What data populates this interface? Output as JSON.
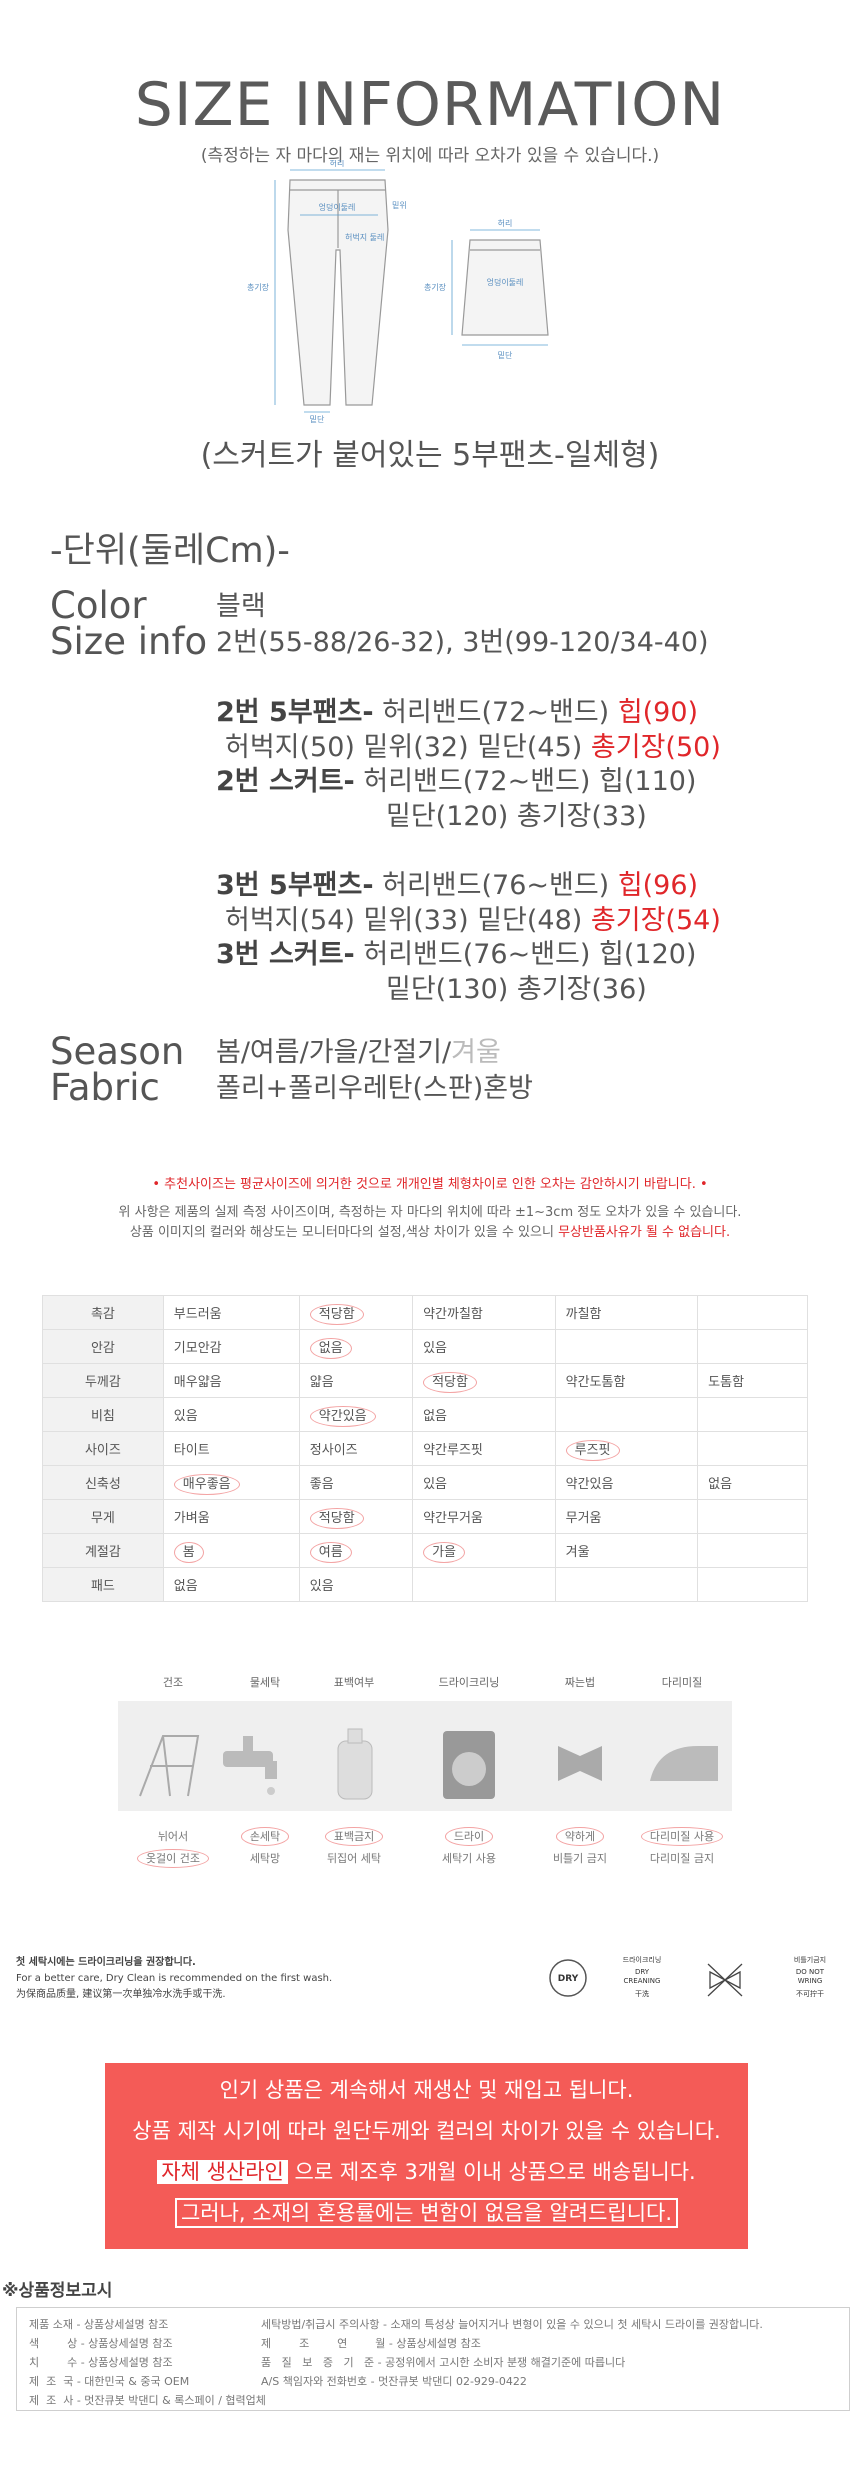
{
  "header": {
    "title": "SIZE INFORMATION",
    "subtitle": "(측정하는 자 마다의  재는 위치에 따라 오차가 있을 수 있습니다.)"
  },
  "diagram": {
    "pants_labels": [
      "허리",
      "엉덩이둘레",
      "밑위",
      "허벅지 둘레",
      "총기장",
      "밑단"
    ],
    "skirt_labels": [
      "허리",
      "엉덩이둘레",
      "총기장",
      "밑단"
    ]
  },
  "product_type": "(스커트가  붙어있는 5부팬츠-일체형)",
  "unit": "-단위(둘레Cm)-",
  "specs": {
    "color_label": "Color",
    "color": "블랙",
    "size_label": "Size info",
    "size": "2번(55-88/26-32), 3번(99-120/34-40)",
    "season_label": "Season",
    "season": "봄/여름/가을/간절기/",
    "season_off": "겨울",
    "fabric_label": "Fabric",
    "fabric": "폴리+폴리우레탄(스판)혼방"
  },
  "sizes": [
    {
      "pants_title": "2번 5부팬츠-",
      "pants_1": " 허리밴드(72~밴드) ",
      "pants_hip": "힙(90)",
      "pants_2": "허벅지(50) 밑위(32) 밑단(45) ",
      "pants_length": "총기장(50)",
      "skirt_title": "2번 스커트-",
      "skirt_1": " 허리밴드(72~밴드) 힙(110)",
      "skirt_2": "밑단(120) 총기장(33)"
    },
    {
      "pants_title": "3번 5부팬츠-",
      "pants_1": " 허리밴드(76~밴드) ",
      "pants_hip": "힙(96)",
      "pants_2": "허벅지(54) 밑위(33) 밑단(48) ",
      "pants_length": "총기장(54)",
      "skirt_title": "3번 스커트-",
      "skirt_1": " 허리밴드(76~밴드) 힙(120)",
      "skirt_2": "밑단(130) 총기장(36)"
    }
  ],
  "notice": {
    "recommend": "• 추천사이즈는 평균사이즈에 의거한 것으로 개개인별 체형차이로 인한 오차는 감안하시기 바랍니다. •",
    "measure": "위 사항은 제품의 실제 측정 사이즈이며, 측정하는 자 마다의 위치에 따라 ±1~3cm 정도 오차가 있을 수 있습니다.",
    "color": "상품 이미지의 컬러와 해상도는 모니터마다의 설정,색상 차이가 있을 수 있으니 ",
    "color_warn": "무상반품사유가 될 수 없습니다."
  },
  "fabric_table": {
    "rows": [
      {
        "label": "촉감",
        "options": [
          "부드러움",
          "적당함",
          "약간까칠함",
          "까칠함"
        ],
        "selected": [
          1
        ]
      },
      {
        "label": "안감",
        "options": [
          "기모안감",
          "없음",
          "있음"
        ],
        "selected": [
          1
        ]
      },
      {
        "label": "두께감",
        "options": [
          "매우얇음",
          "얇음",
          "적당함",
          "약간도톰함",
          "도톰함"
        ],
        "selected": [
          2
        ]
      },
      {
        "label": "비침",
        "options": [
          "있음",
          "약간있음",
          "없음"
        ],
        "selected": [
          1
        ]
      },
      {
        "label": "사이즈",
        "options": [
          "타이트",
          "정사이즈",
          "약간루즈핏",
          "루즈핏"
        ],
        "selected": [
          3
        ]
      },
      {
        "label": "신축성",
        "options": [
          "매우좋음",
          "좋음",
          "있음",
          "약간있음",
          "없음"
        ],
        "selected": [
          0
        ]
      },
      {
        "label": "무게",
        "options": [
          "가벼움",
          "적당함",
          "약간무거움",
          "무거움"
        ],
        "selected": [
          1
        ]
      },
      {
        "label": "계절감",
        "options": [
          "봄",
          "여름",
          "가을",
          "겨울"
        ],
        "selected": [
          0,
          1,
          2
        ]
      },
      {
        "label": "패드",
        "options": [
          "없음",
          "있음"
        ],
        "selected": []
      }
    ]
  },
  "care": {
    "categories": [
      {
        "name": "건조",
        "options": [
          "뉘어서",
          "옷걸이 건조"
        ],
        "selected": 1
      },
      {
        "name": "물세탁",
        "options": [
          "손세탁",
          "세탁망"
        ],
        "selected": 0
      },
      {
        "name": "표백여부",
        "options": [
          "표백금지",
          "뒤집어 세탁"
        ],
        "selected": 0
      },
      {
        "name": "드라이크리닝",
        "options": [
          "드라이",
          "세탁기 사용"
        ],
        "selected": 0
      },
      {
        "name": "짜는법",
        "options": [
          "약하게",
          "비틀기 금지"
        ],
        "selected": 0
      },
      {
        "name": "다리미질",
        "options": [
          "다리미질 사용",
          "다리미질 금지"
        ],
        "selected": 0
      }
    ]
  },
  "dry_clean": {
    "title": "첫 세탁시에는 드라이크리닝을 권장합니다.",
    "english": "For a better care, Dry Clean is recommended on the first wash.",
    "chinese": "为保商品质量, 建议第一次单独冷水洗手或干洗.",
    "icon_dry": "DRY",
    "icon_clean": [
      "드라이크리닝",
      "DRY",
      "CREANING",
      "干洗"
    ],
    "icon_wring": [
      "비틀기금지",
      "DO NOT",
      "WRING",
      "不可拧干"
    ]
  },
  "banner": {
    "line1": "인기 상품은 계속해서 재생산 및 재입고 됩니다.",
    "line2": "상품 제작 시기에 따라 원단두께와 컬러의 차이가 있을 수 있습니다.",
    "line3_highlight": "자체 생산라인",
    "line3": " 으로 제조후 3개월 이내 상품으로 배송됩니다.",
    "line4": "그러나, 소재의 혼용률에는 변함이 없음을 알려드립니다."
  },
  "product_info": {
    "title": "※상품정보고시",
    "left": [
      "제품 소재 - 상품상세설명 참조",
      "색        상 - 상품상세설명 참조",
      "치        수 - 상품상세설명 참조",
      "제  조  국 - 대한민국 & 중국 OEM",
      "제  조  사 - 멋잔큐봇 박댄디 & 록스페이 / 협력업체"
    ],
    "right": [
      "세탁방법/취급시 주의사항 - 소재의 특성상 늘어지거나 변형이 있을 수 있으니 첫 세탁시 드라이를 권장합니다.",
      "제        조        연        월 - 상품상세설명 참조",
      "품   질   보   증   기   준 - 공정위에서 고시한 소비자 분쟁 해결기준에 따릅니다",
      "A/S 책임자와 전화번호 - 멋잔큐봇 박댄디 02-929-0422"
    ]
  }
}
